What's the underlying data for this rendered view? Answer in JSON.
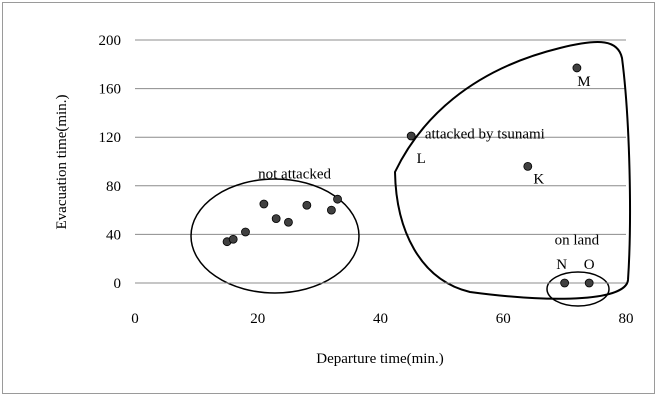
{
  "chart_data": {
    "type": "scatter",
    "title": "",
    "xlabel": "Departure time(min.)",
    "ylabel": "Evacuation time(min.)",
    "xlim": [
      0,
      80
    ],
    "ylim": [
      0,
      200
    ],
    "x_ticks": [
      0,
      20,
      40,
      60,
      80
    ],
    "y_ticks": [
      0,
      40,
      80,
      120,
      160,
      200
    ],
    "grid": "horizontal",
    "legend": "none",
    "point_color": "#404040",
    "series": [
      {
        "points": [
          {
            "x": 15,
            "y": 34
          },
          {
            "x": 16,
            "y": 36
          },
          {
            "x": 18,
            "y": 42
          },
          {
            "x": 21,
            "y": 65
          },
          {
            "x": 23,
            "y": 53
          },
          {
            "x": 25,
            "y": 50
          },
          {
            "x": 28,
            "y": 64
          },
          {
            "x": 32,
            "y": 60
          },
          {
            "x": 33,
            "y": 69
          },
          {
            "x": 45,
            "y": 121,
            "label": "L"
          },
          {
            "x": 64,
            "y": 96,
            "label": "K"
          },
          {
            "x": 72,
            "y": 177,
            "label": "M"
          },
          {
            "x": 70,
            "y": 0,
            "label": "N"
          },
          {
            "x": 74,
            "y": 0,
            "label": "O"
          }
        ]
      }
    ],
    "annotations": [
      {
        "text": "not attacked",
        "x": 26,
        "y": 90
      },
      {
        "text": "attacked by tsunami",
        "x": 57,
        "y": 123
      },
      {
        "text": "on land",
        "x": 72,
        "y": 36
      }
    ]
  }
}
